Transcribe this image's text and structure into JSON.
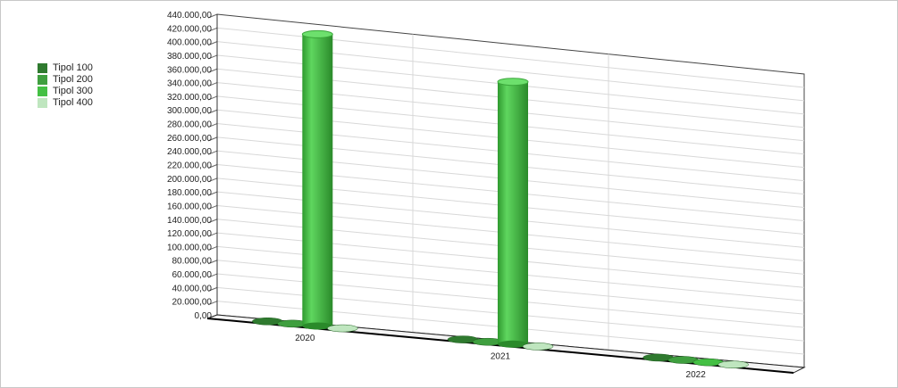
{
  "chart_data": {
    "type": "bar",
    "title": "",
    "xlabel": "",
    "ylabel": "",
    "categories": [
      "2020",
      "2021",
      "2022"
    ],
    "series": [
      {
        "name": "Tipol 100",
        "values": [
          0,
          0,
          0
        ]
      },
      {
        "name": "Tipol 200",
        "values": [
          0,
          0,
          0
        ]
      },
      {
        "name": "Tipol 300",
        "values": [
          427000,
          384000,
          0
        ]
      },
      {
        "name": "Tipol 400",
        "values": [
          0,
          0,
          0
        ]
      }
    ],
    "ylim": [
      0,
      440000
    ],
    "yticks": [
      "0,00",
      "20.000,00",
      "40.000,00",
      "60.000,00",
      "80.000,00",
      "100.000,00",
      "120.000,00",
      "140.000,00",
      "160.000,00",
      "180.000,00",
      "200.000,00",
      "220.000,00",
      "240.000,00",
      "260.000,00",
      "280.000,00",
      "300.000,00",
      "320.000,00",
      "340.000,00",
      "360.000,00",
      "380.000,00",
      "400.000,00",
      "420.000,00",
      "440.000,00"
    ],
    "grid": true,
    "legend_position": "left",
    "style": "3d-cylinder",
    "colors": [
      "#2f7a2f",
      "#3f9f3f",
      "#44c044",
      "#bfe6bf"
    ]
  }
}
